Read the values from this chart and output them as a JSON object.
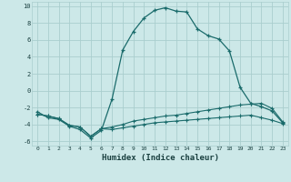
{
  "title": "",
  "xlabel": "Humidex (Indice chaleur)",
  "bg_color": "#cce8e8",
  "line_color": "#1a6b6b",
  "grid_color": "#aacece",
  "xlim": [
    -0.5,
    23.5
  ],
  "ylim": [
    -6.5,
    10.5
  ],
  "xticks": [
    0,
    1,
    2,
    3,
    4,
    5,
    6,
    7,
    8,
    9,
    10,
    11,
    12,
    13,
    14,
    15,
    16,
    17,
    18,
    19,
    20,
    21,
    22,
    23
  ],
  "yticks": [
    -6,
    -4,
    -2,
    0,
    2,
    4,
    6,
    8,
    10
  ],
  "line1_x": [
    0,
    1,
    2,
    3,
    4,
    5,
    6,
    7,
    8,
    9,
    10,
    11,
    12,
    13,
    14,
    15,
    16,
    17,
    18,
    19,
    20,
    21,
    22,
    23
  ],
  "line1_y": [
    -2.5,
    -3.2,
    -3.4,
    -4.2,
    -4.6,
    -5.6,
    -4.7,
    -1.0,
    4.8,
    7.0,
    8.6,
    9.5,
    9.8,
    9.4,
    9.3,
    7.3,
    6.5,
    6.1,
    4.7,
    0.4,
    -1.5,
    -1.9,
    -2.4,
    -3.8
  ],
  "line2_x": [
    0,
    1,
    2,
    3,
    4,
    5,
    6,
    7,
    8,
    9,
    10,
    11,
    12,
    13,
    14,
    15,
    16,
    17,
    18,
    19,
    20,
    21,
    22,
    23
  ],
  "line2_y": [
    -2.8,
    -3.0,
    -3.3,
    -4.1,
    -4.3,
    -5.4,
    -4.5,
    -4.3,
    -4.0,
    -3.6,
    -3.4,
    -3.2,
    -3.0,
    -2.9,
    -2.7,
    -2.5,
    -2.3,
    -2.1,
    -1.9,
    -1.7,
    -1.6,
    -1.5,
    -2.1,
    -3.7
  ],
  "line3_x": [
    0,
    1,
    2,
    3,
    4,
    5,
    6,
    7,
    8,
    9,
    10,
    11,
    12,
    13,
    14,
    15,
    16,
    17,
    18,
    19,
    20,
    21,
    22,
    23
  ],
  "line3_y": [
    -2.8,
    -3.0,
    -3.3,
    -4.1,
    -4.3,
    -5.4,
    -4.5,
    -4.6,
    -4.4,
    -4.2,
    -4.0,
    -3.8,
    -3.7,
    -3.6,
    -3.5,
    -3.4,
    -3.3,
    -3.2,
    -3.1,
    -3.0,
    -2.9,
    -3.2,
    -3.5,
    -3.9
  ]
}
